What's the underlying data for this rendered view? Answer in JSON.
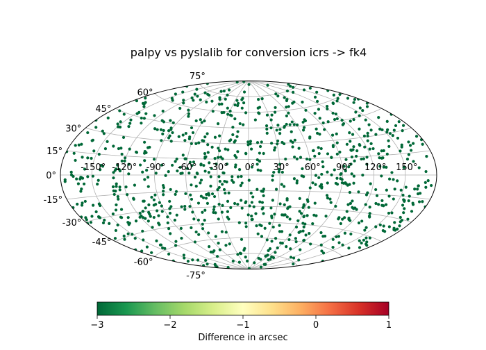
{
  "chart_data": {
    "type": "scatter",
    "projection": "aitoff",
    "title": "palpy vs pyslalib for conversion icrs -> fk4",
    "xlabel": "",
    "ylabel": "",
    "grid": true,
    "x_ticks": [
      "-150°",
      "-120°",
      "-90°",
      "-60°",
      "-30°",
      "0°",
      "30°",
      "60°",
      "90°",
      "120°",
      "150°"
    ],
    "x_tick_values": [
      -150,
      -120,
      -90,
      -60,
      -30,
      0,
      30,
      60,
      90,
      120,
      150
    ],
    "y_ticks": [
      "-75°",
      "-60°",
      "-45°",
      "-30°",
      "-15°",
      "0°",
      "15°",
      "30°",
      "45°",
      "60°",
      "75°"
    ],
    "y_tick_values": [
      -75,
      -60,
      -45,
      -30,
      -15,
      0,
      15,
      30,
      45,
      60,
      75
    ],
    "point_count": 1000,
    "point_value_arcsec": -3,
    "point_color": "#006837",
    "colorbar": {
      "label": "Difference in arcsec",
      "range": [
        -3,
        1
      ],
      "ticks": [
        "−3",
        "−2",
        "−1",
        "0",
        "1"
      ],
      "tick_values": [
        -3,
        -2,
        -1,
        0,
        1
      ],
      "colormap": "RdYlGn_r",
      "colors": [
        "#006837",
        "#1a9850",
        "#66bd63",
        "#a6d96a",
        "#d9ef8b",
        "#ffffbf",
        "#fee08b",
        "#fdae61",
        "#f46d43",
        "#d73027",
        "#a50026"
      ]
    }
  }
}
